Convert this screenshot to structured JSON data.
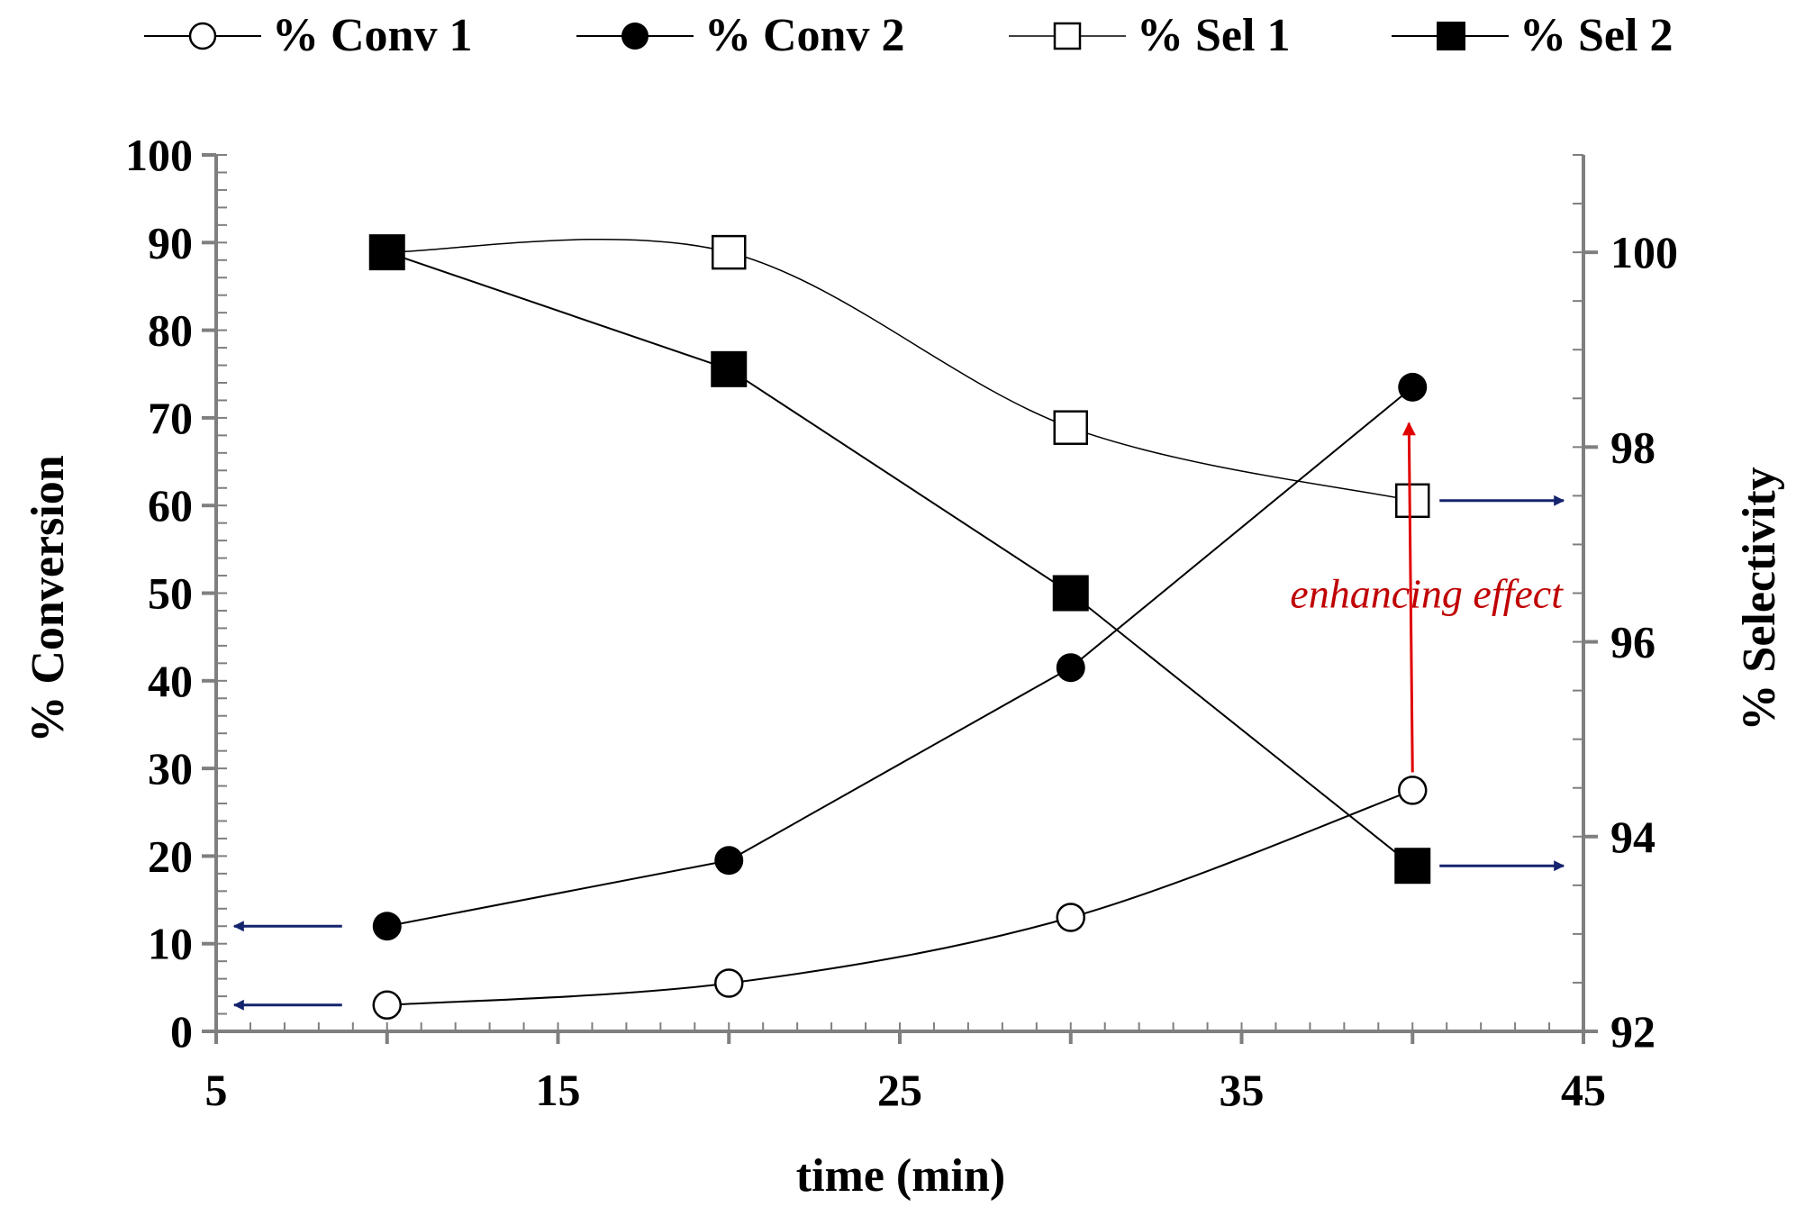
{
  "chart_data": {
    "type": "line",
    "title": "",
    "xlabel": "time (min)",
    "ylabel_left": "% Conversion",
    "ylabel_right": "% Selectivity",
    "xlim": [
      5,
      45
    ],
    "ylim_left": [
      0,
      100
    ],
    "ylim_right": [
      92,
      101
    ],
    "x_ticks": [
      5,
      15,
      25,
      35,
      45
    ],
    "y_left_ticks": [
      0,
      10,
      20,
      30,
      40,
      50,
      60,
      70,
      80,
      90,
      100
    ],
    "y_right_ticks": [
      92,
      94,
      96,
      98,
      100
    ],
    "grid": false,
    "legend_position": "top",
    "series": [
      {
        "name": "% Conv 1",
        "axis": "left",
        "marker": "open-circle",
        "smooth": true,
        "x": [
          10,
          20,
          30,
          40
        ],
        "values": [
          3,
          5.5,
          13,
          27.5
        ]
      },
      {
        "name": "% Conv 2",
        "axis": "left",
        "marker": "filled-circle",
        "smooth": false,
        "x": [
          10,
          20,
          30,
          40
        ],
        "values": [
          12,
          19.5,
          41.5,
          73.5
        ]
      },
      {
        "name": "% Sel 1",
        "axis": "right",
        "marker": "open-square",
        "smooth": true,
        "x": [
          10,
          20,
          30,
          40
        ],
        "values": [
          100,
          100,
          98.2,
          97.45
        ]
      },
      {
        "name": "% Sel 2",
        "axis": "right",
        "marker": "filled-square",
        "smooth": false,
        "x": [
          10,
          20,
          30,
          40
        ],
        "values": [
          100,
          98.8,
          96.5,
          93.7
        ]
      }
    ],
    "annotation": {
      "text": "enhancing effect",
      "color": "#c00000",
      "arrow_x": 40,
      "arrow_from": 27.5,
      "arrow_to": 73.5
    },
    "axis_arrows": [
      {
        "series": "% Conv 1",
        "direction": "left",
        "color": "#14246e"
      },
      {
        "series": "% Conv 2",
        "direction": "left",
        "color": "#14246e"
      },
      {
        "series": "% Sel 1",
        "direction": "right",
        "color": "#14246e"
      },
      {
        "series": "% Sel 2",
        "direction": "right",
        "color": "#14246e"
      }
    ]
  }
}
